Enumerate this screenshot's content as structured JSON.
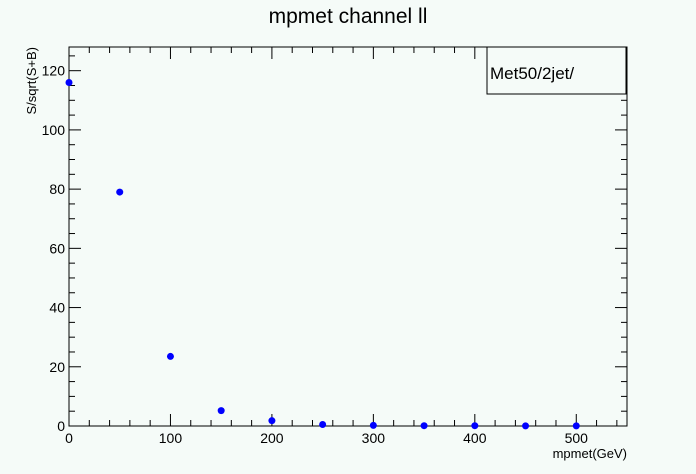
{
  "chart_data": {
    "type": "scatter",
    "title": "mpmet channel  ll",
    "xlabel": "mpmet(GeV)",
    "ylabel": "S/sqrt(S+B)",
    "legend_text": "Met50/2jet/",
    "legend_placement": "top-right",
    "xlim": [
      0,
      550
    ],
    "ylim": [
      0,
      128
    ],
    "x_ticks": [
      0,
      100,
      200,
      300,
      400,
      500
    ],
    "x_tick_labels": [
      "0",
      "100",
      "200",
      "300",
      "400",
      "500"
    ],
    "y_ticks": [
      0,
      20,
      40,
      60,
      80,
      100,
      120
    ],
    "y_tick_labels": [
      "0",
      "20",
      "40",
      "60",
      "80",
      "100",
      "120"
    ],
    "grid": false,
    "marker_color": "#0000ff",
    "points": [
      {
        "x": 0,
        "y": 116
      },
      {
        "x": 50,
        "y": 79
      },
      {
        "x": 100,
        "y": 23.5
      },
      {
        "x": 150,
        "y": 5.2
      },
      {
        "x": 200,
        "y": 1.8
      },
      {
        "x": 250,
        "y": 0.5
      },
      {
        "x": 300,
        "y": 0.2
      },
      {
        "x": 350,
        "y": 0.1
      },
      {
        "x": 400,
        "y": 0.1
      },
      {
        "x": 450,
        "y": 0.05
      },
      {
        "x": 500,
        "y": 0.05
      }
    ]
  }
}
